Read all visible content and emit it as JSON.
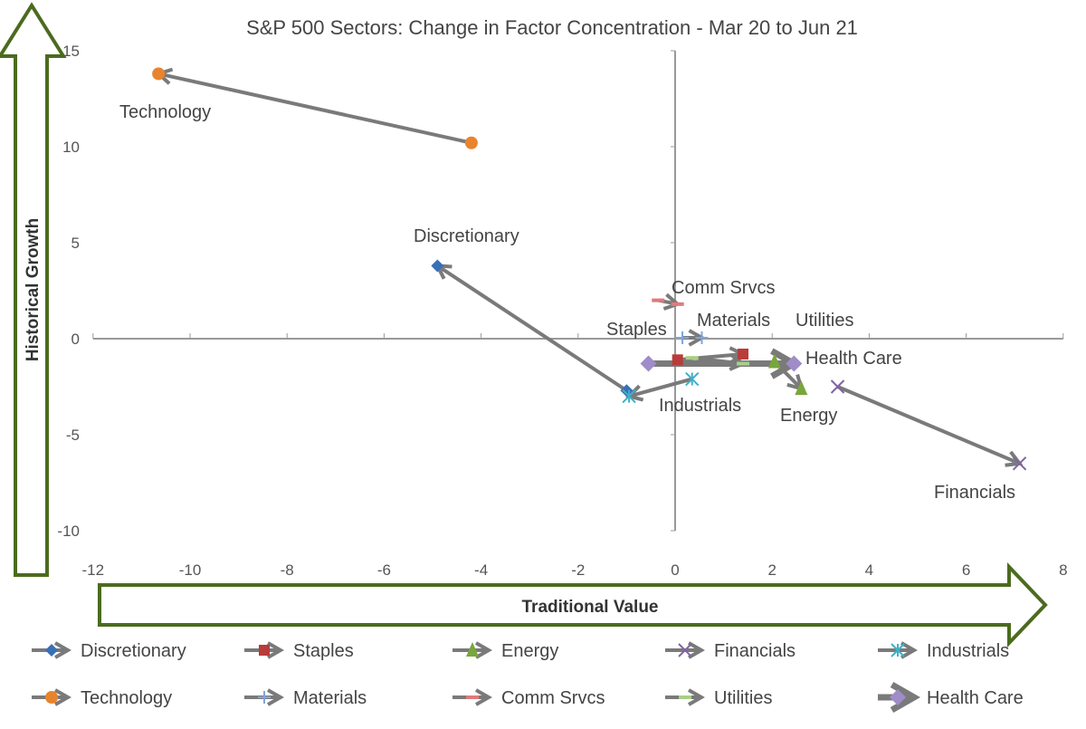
{
  "chart_data": {
    "type": "scatter",
    "title": "S&P 500 Sectors: Change in Factor Concentration - Mar 20 to Jun 21",
    "xlabel": "Traditional Value",
    "ylabel": "Historical Growth",
    "xlim": [
      -12,
      8
    ],
    "ylim": [
      -10,
      15
    ],
    "xticks": [
      -12,
      -10,
      -8,
      -6,
      -4,
      -2,
      0,
      2,
      4,
      6,
      8
    ],
    "yticks": [
      15,
      10,
      5,
      0,
      -5,
      -10
    ],
    "grid": false,
    "legend_position": "bottom",
    "series": [
      {
        "name": "Discretionary",
        "label": "Discretionary",
        "color": "#3a6fb5",
        "marker": "diamond",
        "start": [
          -1.0,
          -2.7
        ],
        "end": [
          -4.9,
          3.8
        ]
      },
      {
        "name": "Staples",
        "label": "Staples",
        "color": "#b83c3a",
        "marker": "square",
        "start": [
          0.05,
          -1.1
        ],
        "end": [
          1.4,
          -0.8
        ]
      },
      {
        "name": "Energy",
        "label": "Energy",
        "color": "#78a63c",
        "marker": "triangle",
        "start": [
          2.05,
          -1.2
        ],
        "end": [
          2.6,
          -2.6
        ]
      },
      {
        "name": "Financials",
        "label": "Financials",
        "color": "#8064a2",
        "marker": "x",
        "start": [
          3.35,
          -2.5
        ],
        "end": [
          7.1,
          -6.5
        ]
      },
      {
        "name": "Industrials",
        "label": "Industrials",
        "color": "#3fb0c8",
        "marker": "asterisk",
        "start": [
          0.35,
          -2.1
        ],
        "end": [
          -0.95,
          -3.0
        ]
      },
      {
        "name": "Technology",
        "label": "Technology",
        "color": "#e8842e",
        "marker": "circle",
        "start": [
          -4.2,
          10.2
        ],
        "end": [
          -10.65,
          13.8
        ]
      },
      {
        "name": "Materials",
        "label": "Materials",
        "color": "#7fa6d8",
        "marker": "plus",
        "start": [
          0.15,
          0.05
        ],
        "end": [
          0.55,
          0.05
        ]
      },
      {
        "name": "Comm Srvcs",
        "label": "Comm Srvcs",
        "color": "#e07a7a",
        "marker": "dash",
        "start": [
          -0.35,
          2.0
        ],
        "end": [
          0.05,
          1.8
        ]
      },
      {
        "name": "Utilities",
        "label": "Utilities",
        "color": "#a8cf84",
        "marker": "dash",
        "start": [
          0.35,
          -1.0
        ],
        "end": [
          1.4,
          -1.3
        ]
      },
      {
        "name": "Health Care",
        "label": "Health Care",
        "color": "#a08cc8",
        "marker": "diamond",
        "start": [
          -0.55,
          -1.3
        ],
        "end": [
          2.45,
          -1.3
        ]
      }
    ]
  }
}
